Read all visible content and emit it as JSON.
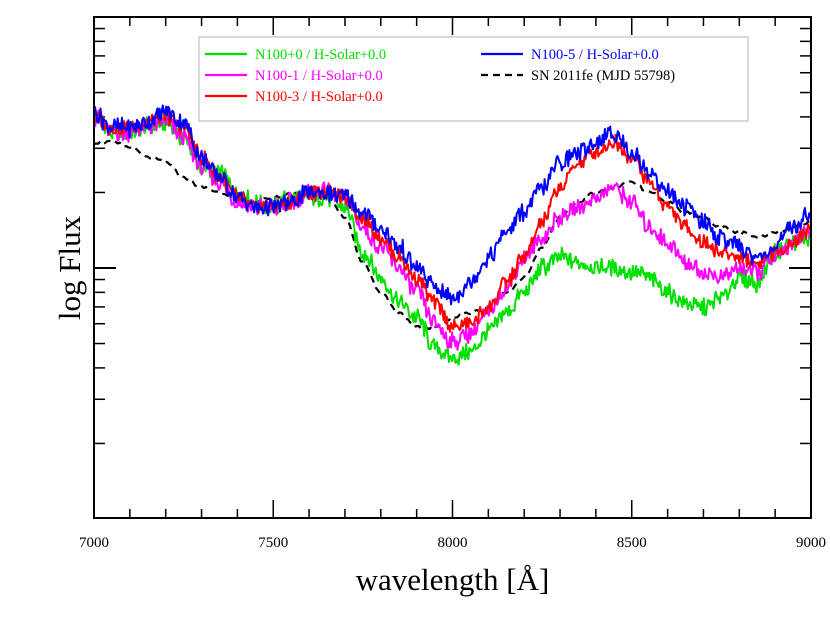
{
  "chart_data": {
    "type": "line",
    "title": "",
    "xlabel": "wavelength [Å]",
    "ylabel": "log Flux",
    "xlim": [
      7000,
      9000
    ],
    "ylim": [
      0,
      1
    ],
    "x_ticks": [
      7000,
      7500,
      8000,
      8500,
      9000
    ],
    "x_minor_step": 100,
    "grid": false,
    "legend_position": "top-center",
    "series": [
      {
        "name": "N100+0 / H-Solar+0.0",
        "color": "#00e000",
        "dash": "solid",
        "noise": 0.016,
        "x": [
          7000,
          7050,
          7100,
          7150,
          7200,
          7250,
          7300,
          7350,
          7400,
          7450,
          7500,
          7550,
          7600,
          7650,
          7700,
          7750,
          7800,
          7850,
          7900,
          7950,
          8000,
          8050,
          8100,
          8150,
          8200,
          8250,
          8300,
          8350,
          8400,
          8450,
          8500,
          8550,
          8600,
          8650,
          8700,
          8750,
          8800,
          8850,
          8900,
          8950,
          9000
        ],
        "values": [
          0.8,
          0.77,
          0.77,
          0.78,
          0.79,
          0.76,
          0.7,
          0.69,
          0.65,
          0.63,
          0.62,
          0.64,
          0.64,
          0.64,
          0.62,
          0.53,
          0.48,
          0.43,
          0.4,
          0.34,
          0.32,
          0.33,
          0.37,
          0.41,
          0.45,
          0.5,
          0.52,
          0.51,
          0.5,
          0.5,
          0.49,
          0.48,
          0.45,
          0.43,
          0.42,
          0.44,
          0.48,
          0.47,
          0.53,
          0.55,
          0.56
        ]
      },
      {
        "name": "N100-1 / H-Solar+0.0",
        "color": "#ff00ff",
        "dash": "solid",
        "noise": 0.016,
        "x": [
          7000,
          7050,
          7100,
          7150,
          7200,
          7250,
          7300,
          7350,
          7400,
          7450,
          7500,
          7550,
          7600,
          7650,
          7700,
          7750,
          7800,
          7850,
          7900,
          7950,
          8000,
          8050,
          8100,
          8150,
          8200,
          8250,
          8300,
          8350,
          8400,
          8450,
          8500,
          8550,
          8600,
          8650,
          8700,
          8750,
          8800,
          8850,
          8900,
          8950,
          9000
        ],
        "values": [
          0.8,
          0.77,
          0.77,
          0.78,
          0.79,
          0.76,
          0.7,
          0.67,
          0.63,
          0.62,
          0.62,
          0.63,
          0.65,
          0.65,
          0.64,
          0.58,
          0.54,
          0.5,
          0.45,
          0.39,
          0.35,
          0.37,
          0.41,
          0.46,
          0.52,
          0.56,
          0.6,
          0.62,
          0.64,
          0.66,
          0.63,
          0.58,
          0.55,
          0.51,
          0.49,
          0.48,
          0.5,
          0.49,
          0.52,
          0.55,
          0.57
        ]
      },
      {
        "name": "N100-3 / H-Solar+0.0",
        "color": "#ff0000",
        "dash": "solid",
        "noise": 0.014,
        "x": [
          7000,
          7050,
          7100,
          7150,
          7200,
          7250,
          7300,
          7350,
          7400,
          7450,
          7500,
          7550,
          7600,
          7650,
          7700,
          7750,
          7800,
          7850,
          7900,
          7950,
          8000,
          8050,
          8100,
          8150,
          8200,
          8250,
          8300,
          8350,
          8400,
          8450,
          8500,
          8550,
          8600,
          8650,
          8700,
          8750,
          8800,
          8850,
          8900,
          8950,
          9000
        ],
        "values": [
          0.8,
          0.78,
          0.78,
          0.79,
          0.8,
          0.78,
          0.72,
          0.68,
          0.64,
          0.62,
          0.62,
          0.63,
          0.65,
          0.65,
          0.64,
          0.6,
          0.56,
          0.52,
          0.48,
          0.43,
          0.38,
          0.39,
          0.42,
          0.47,
          0.52,
          0.59,
          0.66,
          0.71,
          0.73,
          0.75,
          0.72,
          0.67,
          0.62,
          0.58,
          0.55,
          0.53,
          0.52,
          0.51,
          0.53,
          0.55,
          0.58
        ]
      },
      {
        "name": "N100-5 / H-Solar+0.0",
        "color": "#0000ff",
        "dash": "solid",
        "noise": 0.016,
        "x": [
          7000,
          7050,
          7100,
          7150,
          7200,
          7250,
          7300,
          7350,
          7400,
          7450,
          7500,
          7550,
          7600,
          7650,
          7700,
          7750,
          7800,
          7850,
          7900,
          7950,
          8000,
          8050,
          8100,
          8150,
          8200,
          8250,
          8300,
          8350,
          8400,
          8450,
          8500,
          8550,
          8600,
          8650,
          8700,
          8750,
          8800,
          8850,
          8900,
          8950,
          9000
        ],
        "values": [
          0.81,
          0.78,
          0.78,
          0.79,
          0.81,
          0.79,
          0.72,
          0.68,
          0.64,
          0.62,
          0.62,
          0.63,
          0.65,
          0.65,
          0.64,
          0.61,
          0.58,
          0.54,
          0.5,
          0.46,
          0.44,
          0.47,
          0.52,
          0.57,
          0.61,
          0.66,
          0.71,
          0.73,
          0.75,
          0.77,
          0.73,
          0.69,
          0.65,
          0.62,
          0.59,
          0.56,
          0.54,
          0.52,
          0.54,
          0.58,
          0.61
        ]
      },
      {
        "name": "SN 2011fe (MJD 55798)",
        "color": "#000000",
        "dash": "dashed",
        "noise": 0.003,
        "x": [
          7000,
          7050,
          7100,
          7150,
          7200,
          7250,
          7300,
          7350,
          7400,
          7450,
          7500,
          7550,
          7600,
          7650,
          7700,
          7750,
          7800,
          7850,
          7900,
          7950,
          8000,
          8050,
          8100,
          8150,
          8200,
          8250,
          8300,
          8350,
          8400,
          8450,
          8500,
          8550,
          8600,
          8650,
          8700,
          8750,
          8800,
          8850,
          8900,
          8950,
          9000
        ],
        "values": [
          0.75,
          0.75,
          0.74,
          0.72,
          0.71,
          0.68,
          0.66,
          0.65,
          0.64,
          0.63,
          0.64,
          0.65,
          0.65,
          0.64,
          0.6,
          0.51,
          0.45,
          0.41,
          0.38,
          0.38,
          0.4,
          0.41,
          0.42,
          0.45,
          0.48,
          0.54,
          0.6,
          0.63,
          0.65,
          0.66,
          0.67,
          0.65,
          0.63,
          0.61,
          0.6,
          0.58,
          0.57,
          0.56,
          0.57,
          0.58,
          0.59
        ]
      }
    ]
  }
}
